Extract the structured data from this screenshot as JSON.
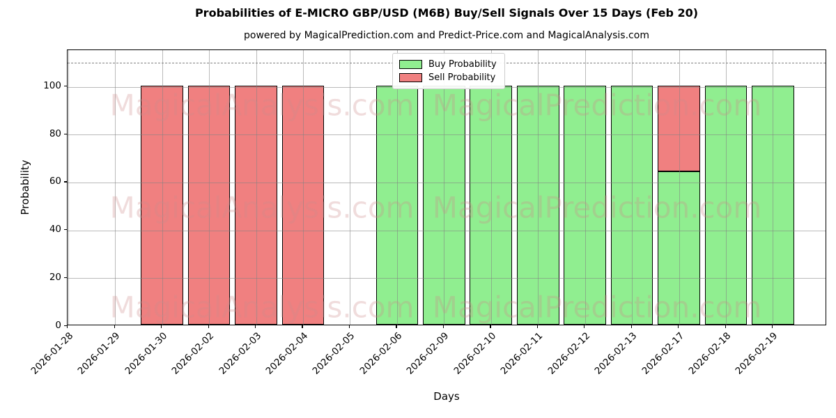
{
  "title": "Probabilities of E-MICRO GBP/USD (M6B) Buy/Sell Signals Over 15 Days (Feb 20)",
  "subtitle": "powered by MagicalPrediction.com and Predict-Price.com and MagicalAnalysis.com",
  "watermarks": {
    "left_text": "MagicalAnalysis.com",
    "right_text": "MagicalPrediction.com",
    "color": "rgba(205,140,140,0.30)"
  },
  "legend": {
    "items": [
      {
        "label": "Buy Probability",
        "color": "#90EE90"
      },
      {
        "label": "Sell Probability",
        "color": "#F08080"
      }
    ]
  },
  "chart_data": {
    "type": "bar",
    "stacked": true,
    "title": "Probabilities of E-MICRO GBP/USD (M6B) Buy/Sell Signals Over 15 Days (Feb 20)",
    "xlabel": "Days",
    "ylabel": "Probability",
    "categories": [
      "2026-01-28",
      "2026-01-29",
      "2026-01-30",
      "2026-02-02",
      "2026-02-03",
      "2026-02-04",
      "2026-02-05",
      "2026-02-06",
      "2026-02-09",
      "2026-02-10",
      "2026-02-11",
      "2026-02-12",
      "2026-02-13",
      "2026-02-17",
      "2026-02-18",
      "2026-02-19"
    ],
    "series": [
      {
        "name": "Buy Probability",
        "color": "#90EE90",
        "values": [
          0,
          0,
          0,
          0,
          0,
          0,
          0,
          100,
          100,
          100,
          100,
          100,
          100,
          64,
          100,
          100
        ]
      },
      {
        "name": "Sell Probability",
        "color": "#F08080",
        "values": [
          0,
          0,
          100,
          100,
          100,
          100,
          0,
          0,
          0,
          0,
          0,
          0,
          0,
          36,
          0,
          0
        ]
      }
    ],
    "yticks": [
      0,
      20,
      40,
      60,
      80,
      100
    ],
    "ylim": [
      0,
      115.3
    ],
    "threshold_line": 110,
    "grid": true,
    "legend_position": "top-center",
    "bar_edge_color": "#000000"
  }
}
